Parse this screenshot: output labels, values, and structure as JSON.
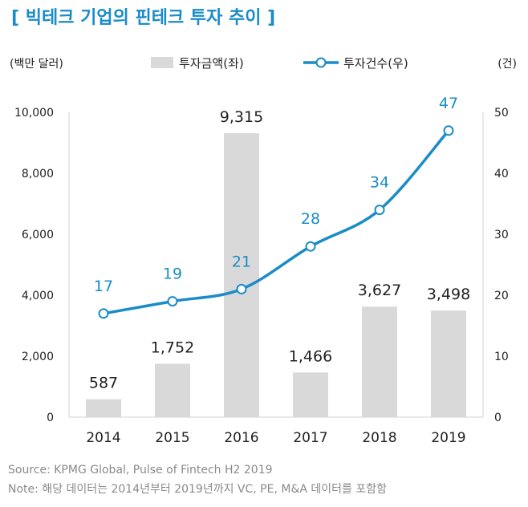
{
  "title": "[ 빅테크 기업의 핀테크 투자 추이 ]",
  "colors": {
    "title": "#1a8cc8",
    "bar": "#d9d9d9",
    "line": "#1a8cc8",
    "text": "#222222",
    "footer": "#8a8a8a"
  },
  "chart_data": {
    "type": "bar+line",
    "categories": [
      "2014",
      "2015",
      "2016",
      "2017",
      "2018",
      "2019"
    ],
    "left_axis": {
      "unit_label": "(백만 달러)",
      "ylim": [
        0,
        10000
      ],
      "ticks": [
        "0",
        "2,000",
        "4,000",
        "6,000",
        "8,000",
        "10,000"
      ]
    },
    "right_axis": {
      "unit_label": "(건)",
      "ylim": [
        0,
        50
      ],
      "ticks": [
        "0",
        "10",
        "20",
        "30",
        "40",
        "50"
      ]
    },
    "series": [
      {
        "name": "투자금액(좌)",
        "type": "bar",
        "axis": "left",
        "values": [
          587,
          1752,
          9315,
          1466,
          3627,
          3498
        ],
        "labels": [
          "587",
          "1,752",
          "9,315",
          "1,466",
          "3,627",
          "3,498"
        ]
      },
      {
        "name": "투자건수(우)",
        "type": "line",
        "axis": "right",
        "values": [
          17,
          19,
          21,
          28,
          34,
          47
        ],
        "labels": [
          "17",
          "19",
          "21",
          "28",
          "34",
          "47"
        ]
      }
    ],
    "legend": "top-center",
    "grid": false
  },
  "footer": {
    "source": "Source: KPMG Global, Pulse of Fintech H2 2019",
    "note": "Note: 해당 데이터는 2014년부터 2019년까지 VC, PE, M&A 데이터를 포함함"
  }
}
